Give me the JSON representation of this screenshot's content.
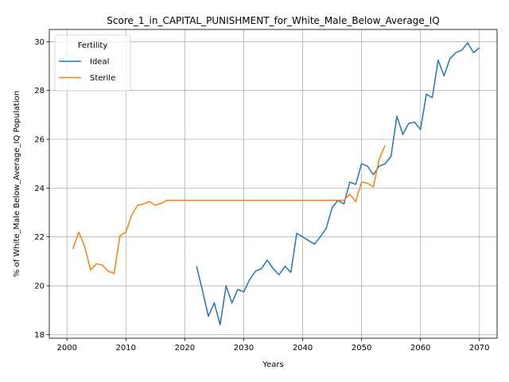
{
  "chart_data": {
    "type": "line",
    "title": "Score_1_in_CAPITAL_PUNISHMENT_for_White_Male_Below_Average_IQ",
    "xlabel": "Years",
    "ylabel": "% of White_Male Below_Average_IQ Population",
    "xlim": [
      1997,
      2073
    ],
    "ylim": [
      17.85,
      30.5
    ],
    "xticks": [
      2000,
      2010,
      2020,
      2030,
      2040,
      2050,
      2060,
      2070
    ],
    "yticks": [
      18,
      20,
      22,
      24,
      26,
      28,
      30
    ],
    "grid": true,
    "legend": {
      "title": "Fertility",
      "placement": "upper left"
    },
    "series": [
      {
        "name": "Ideal",
        "color": "#1f77b4",
        "x": [
          2022,
          2023,
          2024,
          2025,
          2026,
          2027,
          2028,
          2029,
          2030,
          2031,
          2032,
          2033,
          2034,
          2035,
          2036,
          2037,
          2038,
          2039,
          2040,
          2041,
          2042,
          2043,
          2044,
          2045,
          2046,
          2047,
          2048,
          2049,
          2050,
          2051,
          2052,
          2053,
          2054,
          2055,
          2056,
          2057,
          2058,
          2059,
          2060,
          2061,
          2062,
          2063,
          2064,
          2065,
          2066,
          2067,
          2068,
          2069,
          2070
        ],
        "y": [
          20.8,
          19.8,
          18.75,
          19.3,
          18.4,
          20.0,
          19.3,
          19.85,
          19.75,
          20.25,
          20.6,
          20.7,
          21.05,
          20.7,
          20.45,
          20.8,
          20.55,
          22.15,
          22.0,
          21.85,
          21.7,
          22.0,
          22.35,
          23.2,
          23.5,
          23.35,
          24.25,
          24.15,
          25.0,
          24.9,
          24.55,
          24.9,
          25.0,
          25.3,
          26.95,
          26.2,
          26.65,
          26.7,
          26.4,
          27.85,
          27.7,
          29.25,
          28.6,
          29.3,
          29.55,
          29.65,
          29.95,
          29.55,
          29.75
        ]
      },
      {
        "name": "Sterile",
        "color": "#ff7f0e",
        "x": [
          2001,
          2002,
          2003,
          2004,
          2005,
          2006,
          2007,
          2008,
          2009,
          2010,
          2011,
          2012,
          2013,
          2014,
          2015,
          2016,
          2017,
          2018,
          2019,
          2020,
          2021,
          2022,
          2023,
          2024,
          2025,
          2026,
          2027,
          2028,
          2029,
          2030,
          2031,
          2032,
          2033,
          2034,
          2035,
          2036,
          2037,
          2038,
          2039,
          2040,
          2041,
          2042,
          2043,
          2044,
          2045,
          2046,
          2047,
          2048,
          2049,
          2050,
          2051,
          2052,
          2053,
          2054
        ],
        "y": [
          21.5,
          22.2,
          21.6,
          20.65,
          20.9,
          20.85,
          20.6,
          20.5,
          22.05,
          22.2,
          22.9,
          23.3,
          23.35,
          23.45,
          23.3,
          23.38,
          23.5,
          23.5,
          23.5,
          23.5,
          23.5,
          23.5,
          23.5,
          23.5,
          23.5,
          23.5,
          23.5,
          23.5,
          23.5,
          23.5,
          23.5,
          23.5,
          23.5,
          23.5,
          23.5,
          23.5,
          23.5,
          23.5,
          23.5,
          23.5,
          23.5,
          23.5,
          23.5,
          23.5,
          23.5,
          23.5,
          23.5,
          23.75,
          23.45,
          24.25,
          24.2,
          24.05,
          25.2,
          25.75
        ]
      }
    ]
  }
}
